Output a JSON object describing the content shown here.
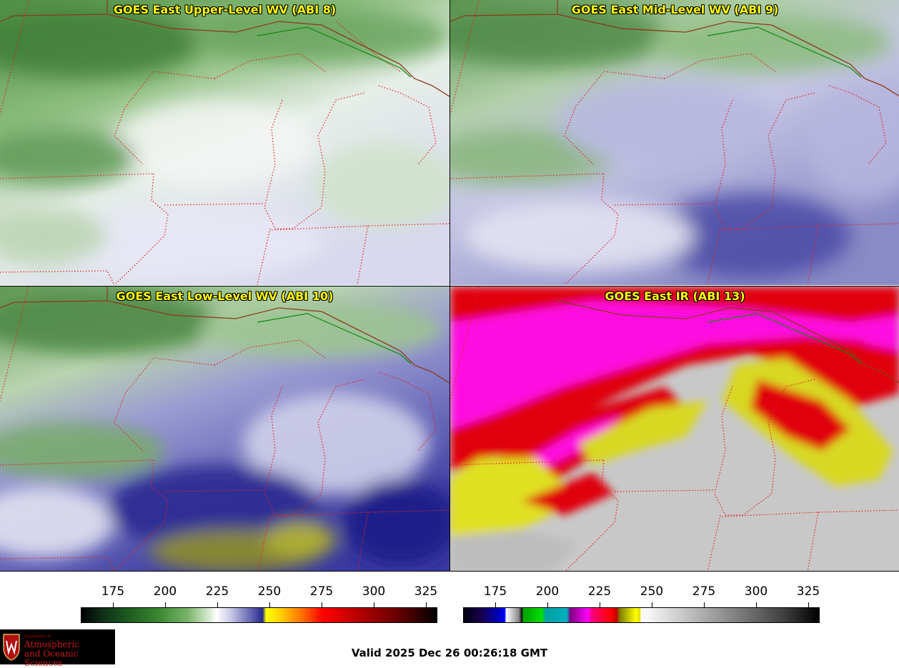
{
  "panels": [
    {
      "title": "GOES East Upper-Level WV (ABI 8)"
    },
    {
      "title": "GOES East Mid-Level WV (ABI 9)"
    },
    {
      "title": "GOES East Low-Level WV (ABI 10)"
    },
    {
      "title": "GOES East IR (ABI 13)"
    }
  ],
  "colorbars": {
    "wv": {
      "min": 160,
      "max": 330,
      "ticks": [
        "175",
        "200",
        "225",
        "250",
        "275",
        "300",
        "325"
      ]
    },
    "ir": {
      "min": 160,
      "max": 330,
      "ticks": [
        "175",
        "200",
        "225",
        "250",
        "275",
        "300",
        "325"
      ]
    }
  },
  "logo": {
    "line1": "Department of",
    "line2": "Atmospheric",
    "line3": "and Oceanic Sciences"
  },
  "valid_time": "Valid 2025 Dec 26 00:26:18 GMT",
  "colors": {
    "title_text": "#ffff00",
    "state_border": "#e02020",
    "coast": "#8b3a1a",
    "intl_border": "#118811"
  }
}
